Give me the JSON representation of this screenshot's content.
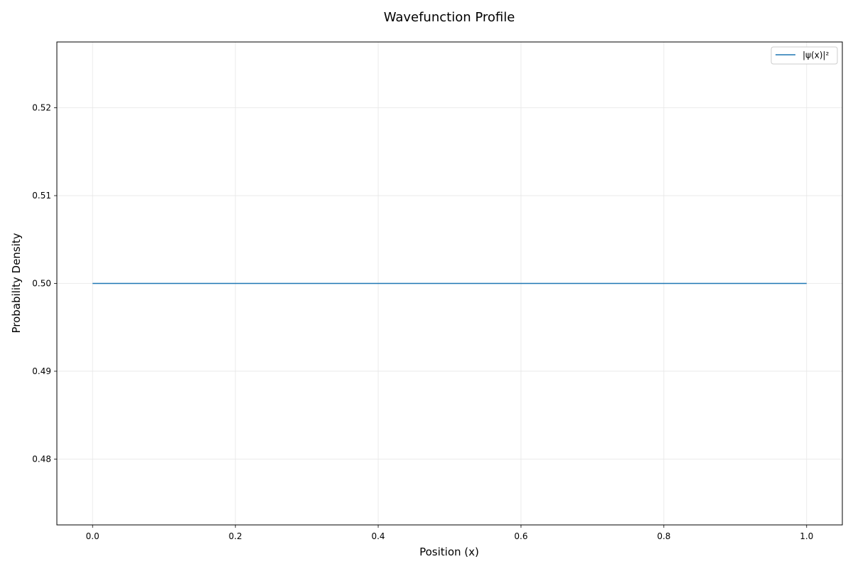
{
  "chart_data": {
    "type": "line",
    "title": "Wavefunction Profile",
    "xlabel": "Position (x)",
    "ylabel": "Probability Density",
    "xlim": [
      -0.05,
      1.05
    ],
    "ylim": [
      0.4725,
      0.5275
    ],
    "xticks": [
      0.0,
      0.2,
      0.4,
      0.6,
      0.8,
      1.0
    ],
    "xtick_labels": [
      "0.0",
      "0.2",
      "0.4",
      "0.6",
      "0.8",
      "1.0"
    ],
    "yticks": [
      0.48,
      0.49,
      0.5,
      0.51,
      0.52
    ],
    "ytick_labels": [
      "0.48",
      "0.49",
      "0.50",
      "0.51",
      "0.52"
    ],
    "grid": true,
    "legend_position": "top-right",
    "series": [
      {
        "name": "|ψ(x)|²",
        "color": "#1f77b4",
        "x": [
          0.0,
          0.1,
          0.2,
          0.3,
          0.4,
          0.5,
          0.6,
          0.7,
          0.8,
          0.9,
          1.0
        ],
        "y": [
          0.5,
          0.5,
          0.5,
          0.5,
          0.5,
          0.5,
          0.5,
          0.5,
          0.5,
          0.5,
          0.5
        ]
      }
    ]
  }
}
